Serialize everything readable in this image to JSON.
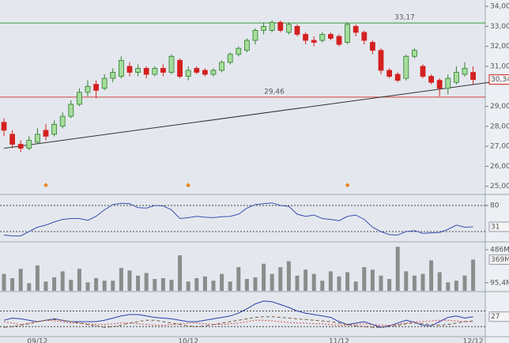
{
  "chart_data": {
    "type": "candlestick",
    "categories": [
      null,
      null,
      null,
      null,
      "09/12",
      null,
      null,
      null,
      null,
      null,
      null,
      null,
      null,
      null,
      null,
      null,
      null,
      null,
      null,
      null,
      null,
      null,
      "10/12",
      null,
      null,
      null,
      null,
      null,
      null,
      null,
      null,
      null,
      null,
      null,
      null,
      null,
      null,
      null,
      null,
      null,
      "11/12",
      null,
      null,
      null,
      null,
      null,
      null,
      null,
      null,
      null,
      null,
      null,
      null,
      null,
      null,
      null,
      "12/12"
    ],
    "open": [
      28.2,
      27.6,
      27.1,
      26.9,
      27.2,
      27.8,
      27.6,
      28.0,
      28.5,
      29.1,
      29.7,
      30.1,
      29.9,
      30.4,
      30.5,
      31.0,
      30.7,
      30.9,
      30.6,
      30.9,
      30.7,
      31.3,
      30.5,
      30.9,
      30.8,
      30.6,
      30.8,
      31.2,
      31.6,
      31.8,
      32.3,
      32.8,
      32.8,
      33.2,
      32.7,
      33.0,
      32.6,
      32.3,
      32.3,
      32.6,
      32.5,
      32.2,
      33.0,
      32.7,
      32.2,
      31.8,
      30.8,
      30.6,
      30.4,
      31.5,
      31.0,
      30.5,
      30.3,
      29.9,
      30.2,
      30.6,
      30.7
    ],
    "high": [
      28.4,
      27.8,
      27.3,
      27.5,
      27.9,
      28.1,
      28.3,
      28.7,
      29.3,
      29.9,
      30.3,
      30.3,
      30.6,
      30.9,
      31.5,
      31.2,
      31.1,
      31.0,
      31.0,
      31.1,
      31.6,
      31.4,
      31.0,
      31.0,
      30.9,
      30.9,
      31.3,
      31.7,
      32.0,
      32.4,
      32.9,
      33.2,
      33.3,
      33.3,
      33.2,
      33.1,
      32.7,
      32.5,
      32.7,
      32.7,
      32.6,
      33.2,
      33.1,
      32.8,
      32.3,
      31.9,
      30.9,
      30.7,
      31.6,
      31.9,
      31.1,
      30.6,
      30.4,
      30.6,
      31.0,
      31.2,
      31.0
    ],
    "low": [
      27.5,
      26.9,
      26.7,
      26.8,
      27.1,
      27.3,
      27.5,
      27.9,
      28.4,
      29.0,
      29.5,
      29.4,
      29.8,
      30.2,
      30.4,
      30.5,
      30.5,
      30.4,
      30.5,
      30.5,
      30.6,
      30.4,
      30.3,
      30.6,
      30.5,
      30.5,
      30.7,
      31.1,
      31.5,
      31.7,
      32.1,
      32.6,
      32.7,
      32.7,
      32.6,
      32.5,
      32.1,
      32.0,
      32.2,
      32.3,
      32.0,
      32.1,
      32.5,
      32.1,
      31.6,
      30.6,
      30.4,
      30.2,
      30.3,
      31.4,
      30.4,
      30.1,
      29.5,
      29.6,
      30.1,
      30.5,
      30.1
    ],
    "close": [
      27.8,
      27.1,
      26.9,
      27.3,
      27.6,
      27.5,
      28.1,
      28.5,
      29.1,
      29.7,
      30.0,
      29.8,
      30.4,
      30.7,
      31.3,
      30.7,
      30.9,
      30.6,
      30.9,
      30.7,
      31.5,
      30.5,
      30.8,
      30.7,
      30.6,
      30.8,
      31.2,
      31.6,
      31.9,
      32.3,
      32.8,
      33.0,
      33.2,
      32.8,
      33.1,
      32.6,
      32.3,
      32.2,
      32.6,
      32.4,
      32.1,
      33.1,
      32.7,
      32.3,
      31.8,
      30.8,
      30.5,
      30.3,
      31.5,
      31.8,
      30.5,
      30.2,
      29.9,
      30.4,
      30.7,
      30.9,
      30.34
    ],
    "up_color": "#a6dd9c",
    "up_outline": "#2f7d2f",
    "down_color": "#d42020",
    "ylim": [
      24.63,
      34.32
    ],
    "yticks": [
      {
        "value": 25,
        "label": "25,00"
      },
      {
        "value": 26,
        "label": "26,00"
      },
      {
        "value": 27,
        "label": "27,00"
      },
      {
        "value": 28,
        "label": "28,00"
      },
      {
        "value": 29,
        "label": "29,00"
      },
      {
        "value": 31,
        "label": "31,00"
      },
      {
        "value": 32,
        "label": "32,00"
      },
      {
        "value": 33,
        "label": "33,00"
      },
      {
        "value": 34,
        "label": "34,00"
      }
    ],
    "last_price_label": "30,34",
    "hlines": [
      {
        "value": 33.17,
        "label": "33,17",
        "color": "#3a9a3a"
      },
      {
        "value": 29.46,
        "label": "29,46",
        "color": "#d04040"
      }
    ],
    "trendline": {
      "x": [
        0,
        58
      ],
      "y": [
        26.9,
        30.2
      ],
      "color": "#333333"
    },
    "signals": {
      "indices": [
        5,
        22,
        41
      ],
      "value": 25.05,
      "color": "#e8872a"
    },
    "panels": [
      {
        "type": "line",
        "ylim": [
          0,
          100
        ],
        "yticks": [
          80
        ],
        "levels": [
          20,
          80
        ],
        "last_label": "31",
        "series": [
          {
            "color": "#3a4fb0",
            "values": [
              12,
              10,
              10,
              20,
              30,
              35,
              42,
              48,
              50,
              50,
              46,
              55,
              70,
              82,
              85,
              84,
              75,
              74,
              80,
              79,
              70,
              50,
              52,
              55,
              53,
              52,
              54,
              55,
              60,
              74,
              82,
              84,
              86,
              80,
              78,
              60,
              55,
              58,
              50,
              48,
              45,
              55,
              58,
              48,
              30,
              20,
              13,
              12,
              20,
              22,
              16,
              17,
              18,
              25,
              35,
              30,
              31
            ]
          }
        ]
      },
      {
        "type": "bar",
        "ylim": [
          0,
          560
        ],
        "yticks": [
          {
            "value": 486,
            "label": "486M"
          },
          {
            "value": 95.4,
            "label": "95,4M"
          }
        ],
        "last_label": "369M",
        "color": "#8c8c8c",
        "values": [
          200,
          150,
          260,
          90,
          300,
          110,
          160,
          230,
          130,
          260,
          100,
          150,
          120,
          120,
          270,
          240,
          180,
          210,
          140,
          150,
          130,
          420,
          110,
          150,
          170,
          120,
          200,
          110,
          280,
          140,
          160,
          320,
          200,
          280,
          350,
          180,
          250,
          200,
          120,
          230,
          170,
          220,
          110,
          280,
          250,
          180,
          140,
          520,
          230,
          180,
          200,
          360,
          220,
          100,
          120,
          180,
          369
        ]
      },
      {
        "type": "line",
        "ylim": [
          0,
          60
        ],
        "yticks": [],
        "levels": [
          13,
          35
        ],
        "last_label": "27",
        "series": [
          {
            "color": "#2a3fa8",
            "values": [
              22,
              25,
              24,
              22,
              20,
              22,
              24,
              22,
              20,
              20,
              20,
              20,
              22,
              25,
              28,
              30,
              30,
              28,
              26,
              25,
              24,
              22,
              20,
              20,
              22,
              24,
              26,
              28,
              32,
              38,
              45,
              49,
              48,
              44,
              40,
              35,
              32,
              30,
              28,
              26,
              20,
              16,
              18,
              20,
              16,
              12,
              14,
              18,
              22,
              19,
              15,
              14,
              20,
              26,
              28,
              25,
              27
            ]
          },
          {
            "color": "#d05050",
            "dash": "2,2",
            "values": [
              20,
              18,
              16,
              18,
              20,
              22,
              21,
              20,
              18,
              18,
              17,
              16,
              16,
              17,
              18,
              18,
              17,
              16,
              15,
              15,
              16,
              17,
              18,
              18,
              17,
              16,
              16,
              17,
              18,
              20,
              22,
              22,
              21,
              20,
              19,
              18,
              18,
              17,
              17,
              16,
              15,
              15,
              16,
              17,
              16,
              15,
              15,
              16,
              18,
              20,
              20,
              21,
              22,
              22,
              21,
              20,
              20
            ]
          },
          {
            "color": "#7a5a3a",
            "dash": "4,3",
            "values": [
              12,
              13,
              15,
              17,
              20,
              22,
              23,
              22,
              20,
              18,
              16,
              14,
              12,
              13,
              15,
              18,
              20,
              22,
              22,
              20,
              18,
              16,
              14,
              13,
              14,
              16,
              18,
              20,
              22,
              24,
              26,
              27,
              27,
              26,
              25,
              24,
              23,
              22,
              21,
              20,
              18,
              16,
              14,
              13,
              12,
              12,
              13,
              15,
              17,
              18,
              17,
              16,
              15,
              16,
              18,
              20,
              21
            ]
          }
        ]
      }
    ]
  }
}
